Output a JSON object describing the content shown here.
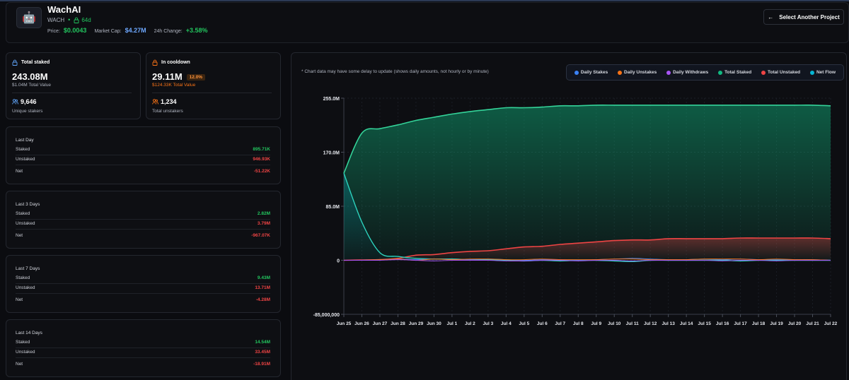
{
  "header": {
    "project_name": "WachAI",
    "ticker": "WACH",
    "separator": "•",
    "age": "64d",
    "price_label": "Price:",
    "price_value": "$0.0043",
    "mcap_label": "Market Cap:",
    "mcap_value": "$4.27M",
    "change_label": "24h Change:",
    "change_value": "+3.58%",
    "select_button": "Select Another Project",
    "back_arrow": "←"
  },
  "total_staked": {
    "label": "Total staked",
    "amount": "243.08M",
    "value_text": "$1.04M Total Value",
    "count": "9,646",
    "count_label": "Unique stakers"
  },
  "cooldown": {
    "label": "In cooldown",
    "amount": "29.11M",
    "badge": "12.0%",
    "value_text": "$124.33K Total Value",
    "count": "1,234",
    "count_label": "Total unstakers"
  },
  "periods": [
    {
      "title": "Last Day",
      "staked_label": "Staked",
      "staked": "895.71K",
      "unstaked_label": "Unstaked",
      "unstaked": "946.93K",
      "net_label": "Net",
      "net": "-51.22K"
    },
    {
      "title": "Last 3 Days",
      "staked_label": "Staked",
      "staked": "2.82M",
      "unstaked_label": "Unstaked",
      "unstaked": "3.79M",
      "net_label": "Net",
      "net": "-967.07K"
    },
    {
      "title": "Last 7 Days",
      "staked_label": "Staked",
      "staked": "9.43M",
      "unstaked_label": "Unstaked",
      "unstaked": "13.71M",
      "net_label": "Net",
      "net": "-4.28M"
    },
    {
      "title": "Last 14 Days",
      "staked_label": "Staked",
      "staked": "14.54M",
      "unstaked_label": "Unstaked",
      "unstaked": "33.45M",
      "net_label": "Net",
      "net": "-18.91M"
    }
  ],
  "chart_note": "* Chart data may have some delay to update (shows daily amounts, not hourly or by minute)",
  "legend": [
    {
      "label": "Daily Stakes",
      "color": "#3b82f6"
    },
    {
      "label": "Daily Unstakes",
      "color": "#f97316"
    },
    {
      "label": "Daily Withdraws",
      "color": "#a855f7"
    },
    {
      "label": "Total Staked",
      "color": "#10b981"
    },
    {
      "label": "Total Unstaked",
      "color": "#ef4444"
    },
    {
      "label": "Net Flow",
      "color": "#06b6d4"
    }
  ],
  "colors": {
    "positive": "#22c55e",
    "negative": "#ef4444",
    "accent_blue": "#6ea8ff",
    "accent_orange": "#f97316"
  },
  "icons": {
    "logo": "robot-mascot-logo",
    "lock": "lock-icon",
    "unlock": "unlock-icon",
    "users": "users-icon",
    "back": "arrow-left-icon"
  },
  "chart_data": {
    "type": "area",
    "x": [
      "Jun 25",
      "Jun 26",
      "Jun 27",
      "Jun 28",
      "Jun 29",
      "Jun 30",
      "Jul 1",
      "Jul 2",
      "Jul 3",
      "Jul 4",
      "Jul 5",
      "Jul 6",
      "Jul 7",
      "Jul 8",
      "Jul 9",
      "Jul 10",
      "Jul 11",
      "Jul 12",
      "Jul 13",
      "Jul 14",
      "Jul 15",
      "Jul 16",
      "Jul 17",
      "Jul 18",
      "Jul 19",
      "Jul 20",
      "Jul 21",
      "Jul 22"
    ],
    "y_ticks": [
      "255.0M",
      "170.0M",
      "85.0M",
      "0",
      "-85,000,000"
    ],
    "ylim": [
      -85000000,
      255000000
    ],
    "grid": true,
    "series": [
      {
        "name": "Total Staked",
        "values": [
          137,
          200,
          207,
          213,
          220,
          225,
          230,
          234,
          237,
          240,
          240,
          241,
          243,
          243,
          244,
          244,
          244,
          244,
          244,
          244,
          244,
          244,
          244,
          244,
          244,
          244,
          244,
          243
        ]
      },
      {
        "name": "Total Unstaked",
        "values": [
          0,
          0.5,
          1,
          3,
          8,
          9,
          12,
          14,
          15,
          18,
          21,
          22,
          25,
          27,
          29,
          31,
          32,
          32,
          34,
          34,
          34,
          34,
          35,
          35,
          35,
          35,
          35,
          34
        ]
      },
      {
        "name": "Net Flow",
        "values": [
          137,
          60,
          12,
          6,
          3,
          2,
          2,
          1,
          1,
          0,
          -1,
          0,
          -1,
          0,
          0,
          -1,
          -2,
          0,
          0,
          0,
          0,
          0,
          -1,
          0,
          0,
          0,
          0,
          0
        ]
      },
      {
        "name": "Daily Stakes",
        "values": [
          0,
          0,
          1,
          2,
          1,
          2,
          1,
          1,
          2,
          1,
          0,
          1,
          1,
          0,
          1,
          2,
          3,
          2,
          1,
          1,
          2,
          1,
          2,
          1,
          1,
          1,
          1,
          0
        ]
      },
      {
        "name": "Daily Unstakes",
        "values": [
          0,
          0,
          1,
          2,
          0,
          2,
          1,
          2,
          2,
          1,
          1,
          2,
          1,
          1,
          1,
          2,
          2,
          1,
          1,
          1,
          2,
          2,
          2,
          1,
          2,
          1,
          1,
          0
        ]
      },
      {
        "name": "Daily Withdraws",
        "values": [
          0,
          0,
          0,
          1,
          0,
          -1,
          0,
          0,
          0,
          -1,
          -1,
          0,
          0,
          -1,
          0,
          0,
          -1,
          0,
          0,
          0,
          0,
          -1,
          0,
          0,
          -1,
          0,
          0,
          0
        ]
      }
    ],
    "units": "millions"
  }
}
